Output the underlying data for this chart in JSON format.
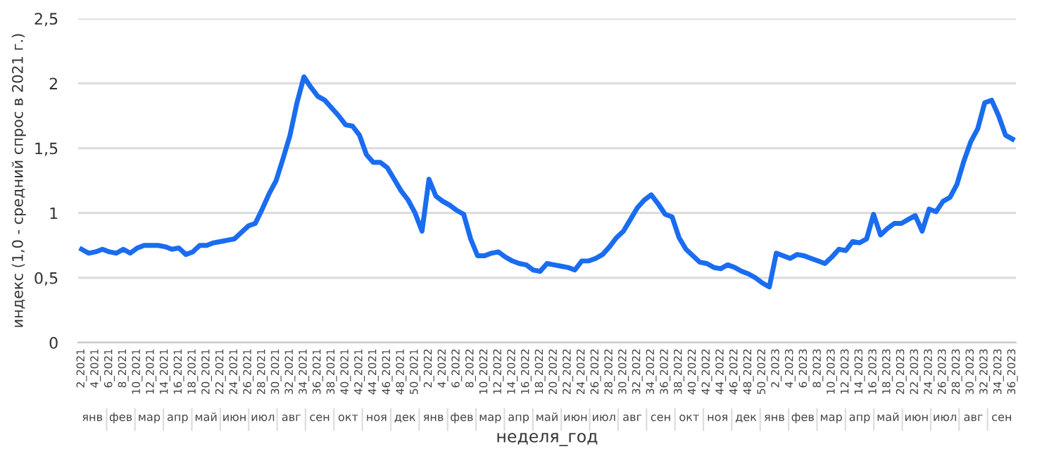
{
  "chart_data": {
    "type": "line",
    "xlabel": "неделя_год",
    "ylabel": "индекс (1,0 - средний спрос в 2021 г.)",
    "categories": [
      "2_2021",
      null,
      "4_2021",
      null,
      "6_2021",
      null,
      "8_2021",
      null,
      "10_2021",
      null,
      "12_2021",
      null,
      "14_2021",
      null,
      "16_2021",
      null,
      "18_2021",
      null,
      "20_2021",
      null,
      "22_2021",
      null,
      "24_2021",
      null,
      "26_2021",
      null,
      "28_2021",
      null,
      "30_2021",
      null,
      "32_2021",
      null,
      "34_2021",
      null,
      "36_2021",
      null,
      "38_2021",
      null,
      "40_2021",
      null,
      "42_2021",
      null,
      "44_2021",
      null,
      "46_2021",
      null,
      "48_2021",
      null,
      "50_2021",
      null,
      "2_2022",
      null,
      "4_2022",
      null,
      "6_2022",
      null,
      "8_2022",
      null,
      "10_2022",
      null,
      "12_2022",
      null,
      "14_2022",
      null,
      "16_2022",
      null,
      "18_2022",
      null,
      "20_2022",
      null,
      "22_2022",
      null,
      "24_2022",
      null,
      "26_2022",
      null,
      "28_2022",
      null,
      "30_2022",
      null,
      "32_2022",
      null,
      "34_2022",
      null,
      "36_2022",
      null,
      "38_2022",
      null,
      "40_2022",
      null,
      "42_2022",
      null,
      "44_2022",
      null,
      "46_2022",
      null,
      "48_2022",
      null,
      "50_2022",
      null,
      "2_2023",
      null,
      "4_2023",
      null,
      "6_2023",
      null,
      "8_2023",
      null,
      "10_2023",
      null,
      "12_2023",
      null,
      "14_2023",
      null,
      "16_2023",
      null,
      "18_2023",
      null,
      "20_2023",
      null,
      "22_2023",
      null,
      "24_2023",
      null,
      "26_2023",
      null,
      "28_2023",
      null,
      "30_2023",
      null,
      "32_2023",
      null,
      "34_2023",
      null,
      "36_2023"
    ],
    "series": [
      {
        "color": "#1a6cf0",
        "values": [
          0.72,
          0.69,
          0.7,
          0.72,
          0.7,
          0.69,
          0.72,
          0.69,
          0.73,
          0.75,
          0.75,
          0.75,
          0.74,
          0.72,
          0.73,
          0.68,
          0.7,
          0.75,
          0.75,
          0.77,
          0.78,
          0.79,
          0.8,
          0.85,
          0.9,
          0.92,
          1.03,
          1.15,
          1.25,
          1.42,
          1.6,
          1.85,
          2.05,
          1.97,
          1.9,
          1.87,
          1.81,
          1.75,
          1.68,
          1.67,
          1.6,
          1.45,
          1.39,
          1.39,
          1.35,
          1.26,
          1.17,
          1.1,
          1.0,
          0.86,
          1.26,
          1.13,
          1.09,
          1.06,
          1.02,
          0.99,
          0.8,
          0.67,
          0.67,
          0.69,
          0.7,
          0.66,
          0.63,
          0.61,
          0.6,
          0.56,
          0.55,
          0.61,
          0.6,
          0.59,
          0.58,
          0.56,
          0.63,
          0.63,
          0.65,
          0.68,
          0.74,
          0.81,
          0.86,
          0.95,
          1.04,
          1.1,
          1.14,
          1.07,
          0.99,
          0.97,
          0.81,
          0.72,
          0.67,
          0.62,
          0.61,
          0.58,
          0.57,
          0.6,
          0.58,
          0.55,
          0.53,
          0.5,
          0.46,
          0.43,
          0.69,
          0.67,
          0.65,
          0.68,
          0.67,
          0.65,
          0.63,
          0.61,
          0.66,
          0.72,
          0.71,
          0.78,
          0.77,
          0.8,
          0.99,
          0.83,
          0.88,
          0.92,
          0.92,
          0.95,
          0.98,
          0.86,
          1.03,
          1.01,
          1.09,
          1.12,
          1.22,
          1.4,
          1.55,
          1.65,
          1.85,
          1.87,
          1.75,
          1.6,
          1.57
        ]
      }
    ],
    "ylim": [
      0,
      2.5
    ],
    "yticks": [
      0,
      {
        "value": 0.5,
        "label": "0,5"
      },
      1,
      {
        "value": 1.5,
        "label": "1,5"
      },
      2,
      {
        "value": 2.5,
        "label": "2,5"
      }
    ],
    "grid": "y",
    "legend": false,
    "marker": "none",
    "line_style": "solid",
    "annotations": [
      "янв",
      "фев",
      "мар",
      "апр",
      "май",
      "июн",
      "июл",
      "авг",
      "сен",
      "окт",
      "ноя",
      "дек",
      "янв",
      "фев",
      "мар",
      "апр",
      "май",
      "июн",
      "июл",
      "авг",
      "сен",
      "окт",
      "ноя",
      "дек",
      "янв",
      "фев",
      "мар",
      "апр",
      "май",
      "июн",
      "июл",
      "авг",
      "сен"
    ]
  }
}
